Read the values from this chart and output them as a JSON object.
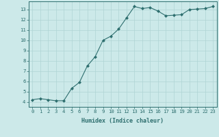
{
  "x": [
    0,
    1,
    2,
    3,
    4,
    5,
    6,
    7,
    8,
    9,
    10,
    11,
    12,
    13,
    14,
    15,
    16,
    17,
    18,
    19,
    20,
    21,
    22,
    23
  ],
  "y": [
    4.2,
    4.3,
    4.2,
    4.1,
    4.1,
    5.3,
    5.9,
    7.5,
    8.4,
    10.0,
    10.4,
    11.1,
    12.2,
    13.3,
    13.1,
    13.2,
    12.85,
    12.4,
    12.45,
    12.5,
    13.0,
    13.05,
    13.1,
    13.3
  ],
  "xlabel": "Humidex (Indice chaleur)",
  "xlim": [
    -0.5,
    23.5
  ],
  "ylim": [
    3.5,
    13.8
  ],
  "yticks": [
    4,
    5,
    6,
    7,
    8,
    9,
    10,
    11,
    12,
    13
  ],
  "xticks": [
    0,
    1,
    2,
    3,
    4,
    5,
    6,
    7,
    8,
    9,
    10,
    11,
    12,
    13,
    14,
    15,
    16,
    17,
    18,
    19,
    20,
    21,
    22,
    23
  ],
  "line_color": "#2d6e6e",
  "marker": "D",
  "markersize": 2.0,
  "bg_color": "#cce9e9",
  "grid_color": "#afd4d4",
  "font_color": "#2d6e6e",
  "font_size_tick": 5.2,
  "font_size_label": 6.0,
  "linewidth": 0.8
}
